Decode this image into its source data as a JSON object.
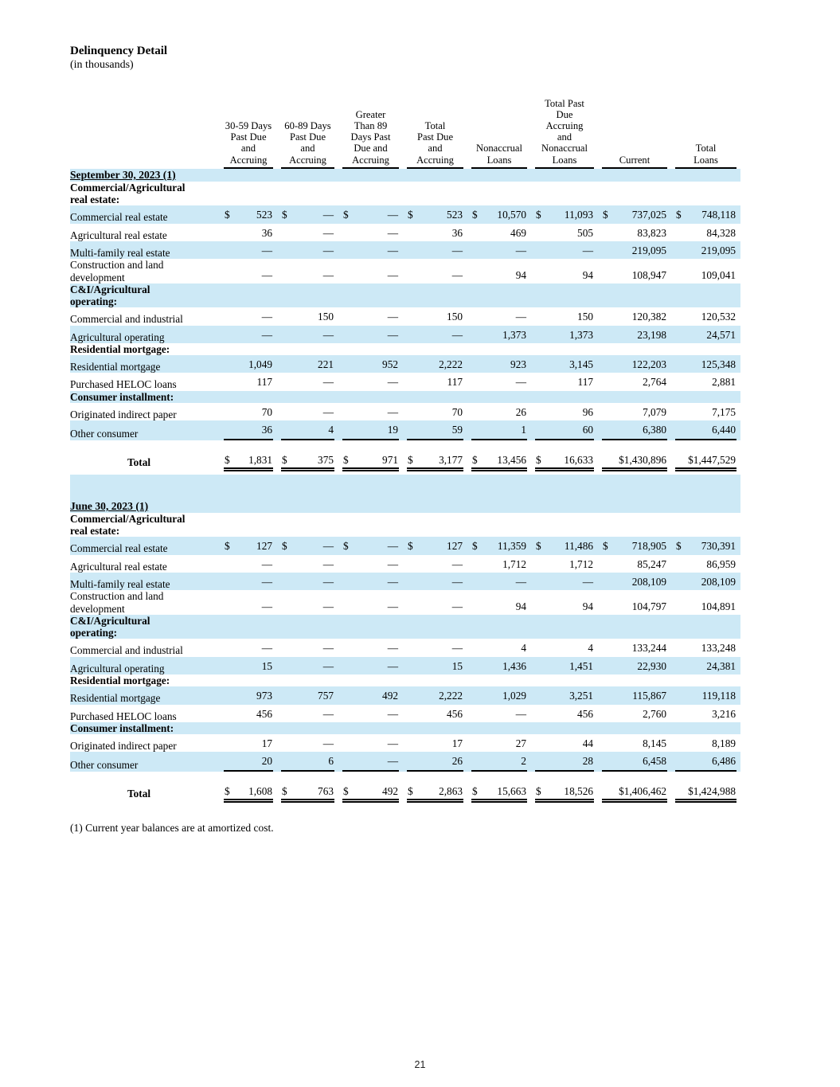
{
  "page": {
    "title": "Delinquency Detail",
    "subtitle": "(in thousands)",
    "footnote": "(1) Current year balances are at amortized cost.",
    "page_number": "21"
  },
  "table": {
    "row_highlight_color": "#cde9f6",
    "columns": [
      "30-59 Days\nPast Due\nand\nAccruing",
      "60-89 Days\nPast Due\nand\nAccruing",
      "Greater\nThan 89\nDays Past\nDue and\nAccruing",
      "Total\nPast Due\nand\nAccruing",
      "Nonaccrual\nLoans",
      "Total Past\nDue\nAccruing\nand\nNonaccrual\nLoans",
      "Current",
      "Total\nLoans"
    ],
    "sections": [
      {
        "date_header": "September 30, 2023 (1)",
        "groups": [
          {
            "label": "Commercial/Agricultural real estate:",
            "rows": [
              {
                "label": "Commercial real estate",
                "dollar": true,
                "values": [
                  "523",
                  "—",
                  "—",
                  "523",
                  "10,570",
                  "11,093",
                  "737,025",
                  "748,118"
                ]
              },
              {
                "label": "Agricultural real estate",
                "values": [
                  "36",
                  "—",
                  "—",
                  "36",
                  "469",
                  "505",
                  "83,823",
                  "84,328"
                ]
              },
              {
                "label": "Multi-family real estate",
                "values": [
                  "—",
                  "—",
                  "—",
                  "—",
                  "—",
                  "—",
                  "219,095",
                  "219,095"
                ]
              },
              {
                "label": "Construction and land development",
                "values": [
                  "—",
                  "—",
                  "—",
                  "—",
                  "94",
                  "94",
                  "108,947",
                  "109,041"
                ]
              }
            ]
          },
          {
            "label": "C&I/Agricultural operating:",
            "rows": [
              {
                "label": "Commercial and industrial",
                "values": [
                  "—",
                  "150",
                  "—",
                  "150",
                  "—",
                  "150",
                  "120,382",
                  "120,532"
                ]
              },
              {
                "label": "Agricultural operating",
                "values": [
                  "—",
                  "—",
                  "—",
                  "—",
                  "1,373",
                  "1,373",
                  "23,198",
                  "24,571"
                ]
              }
            ]
          },
          {
            "label": "Residential mortgage:",
            "rows": [
              {
                "label": "Residential mortgage",
                "values": [
                  "1,049",
                  "221",
                  "952",
                  "2,222",
                  "923",
                  "3,145",
                  "122,203",
                  "125,348"
                ]
              },
              {
                "label": "Purchased HELOC loans",
                "values": [
                  "117",
                  "—",
                  "—",
                  "117",
                  "—",
                  "117",
                  "2,764",
                  "2,881"
                ]
              }
            ]
          },
          {
            "label": "Consumer installment:",
            "rows": [
              {
                "label": "Originated indirect paper",
                "values": [
                  "70",
                  "—",
                  "—",
                  "70",
                  "26",
                  "96",
                  "7,079",
                  "7,175"
                ]
              },
              {
                "label": "Other consumer",
                "underline": true,
                "values": [
                  "36",
                  "4",
                  "19",
                  "59",
                  "1",
                  "60",
                  "6,380",
                  "6,440"
                ]
              }
            ]
          }
        ],
        "total": {
          "label": "Total",
          "values": [
            "1,831",
            "375",
            "971",
            "3,177",
            "13,456",
            "16,633",
            "$1,430,896",
            "$1,447,529"
          ]
        }
      },
      {
        "date_header": "June 30, 2023 (1)",
        "groups": [
          {
            "label": "Commercial/Agricultural real estate:",
            "rows": [
              {
                "label": "Commercial real estate",
                "dollar": true,
                "values": [
                  "127",
                  "—",
                  "—",
                  "127",
                  "11,359",
                  "11,486",
                  "718,905",
                  "730,391"
                ]
              },
              {
                "label": "Agricultural real estate",
                "values": [
                  "—",
                  "—",
                  "—",
                  "—",
                  "1,712",
                  "1,712",
                  "85,247",
                  "86,959"
                ]
              },
              {
                "label": "Multi-family real estate",
                "values": [
                  "—",
                  "—",
                  "—",
                  "—",
                  "—",
                  "—",
                  "208,109",
                  "208,109"
                ]
              },
              {
                "label": "Construction and land development",
                "values": [
                  "—",
                  "—",
                  "—",
                  "—",
                  "94",
                  "94",
                  "104,797",
                  "104,891"
                ]
              }
            ]
          },
          {
            "label": "C&I/Agricultural operating:",
            "rows": [
              {
                "label": "Commercial and industrial",
                "values": [
                  "—",
                  "—",
                  "—",
                  "—",
                  "4",
                  "4",
                  "133,244",
                  "133,248"
                ]
              },
              {
                "label": "Agricultural operating",
                "values": [
                  "15",
                  "—",
                  "—",
                  "15",
                  "1,436",
                  "1,451",
                  "22,930",
                  "24,381"
                ]
              }
            ]
          },
          {
            "label": "Residential mortgage:",
            "rows": [
              {
                "label": "Residential mortgage",
                "values": [
                  "973",
                  "757",
                  "492",
                  "2,222",
                  "1,029",
                  "3,251",
                  "115,867",
                  "119,118"
                ]
              },
              {
                "label": "Purchased HELOC loans",
                "values": [
                  "456",
                  "—",
                  "—",
                  "456",
                  "—",
                  "456",
                  "2,760",
                  "3,216"
                ]
              }
            ]
          },
          {
            "label": "Consumer installment:",
            "rows": [
              {
                "label": "Originated indirect paper",
                "values": [
                  "17",
                  "—",
                  "—",
                  "17",
                  "27",
                  "44",
                  "8,145",
                  "8,189"
                ]
              },
              {
                "label": "Other consumer",
                "underline": true,
                "values": [
                  "20",
                  "6",
                  "—",
                  "26",
                  "2",
                  "28",
                  "6,458",
                  "6,486"
                ]
              }
            ]
          }
        ],
        "total": {
          "label": "Total",
          "values": [
            "1,608",
            "763",
            "492",
            "2,863",
            "15,663",
            "18,526",
            "$1,406,462",
            "$1,424,988"
          ]
        }
      }
    ]
  }
}
